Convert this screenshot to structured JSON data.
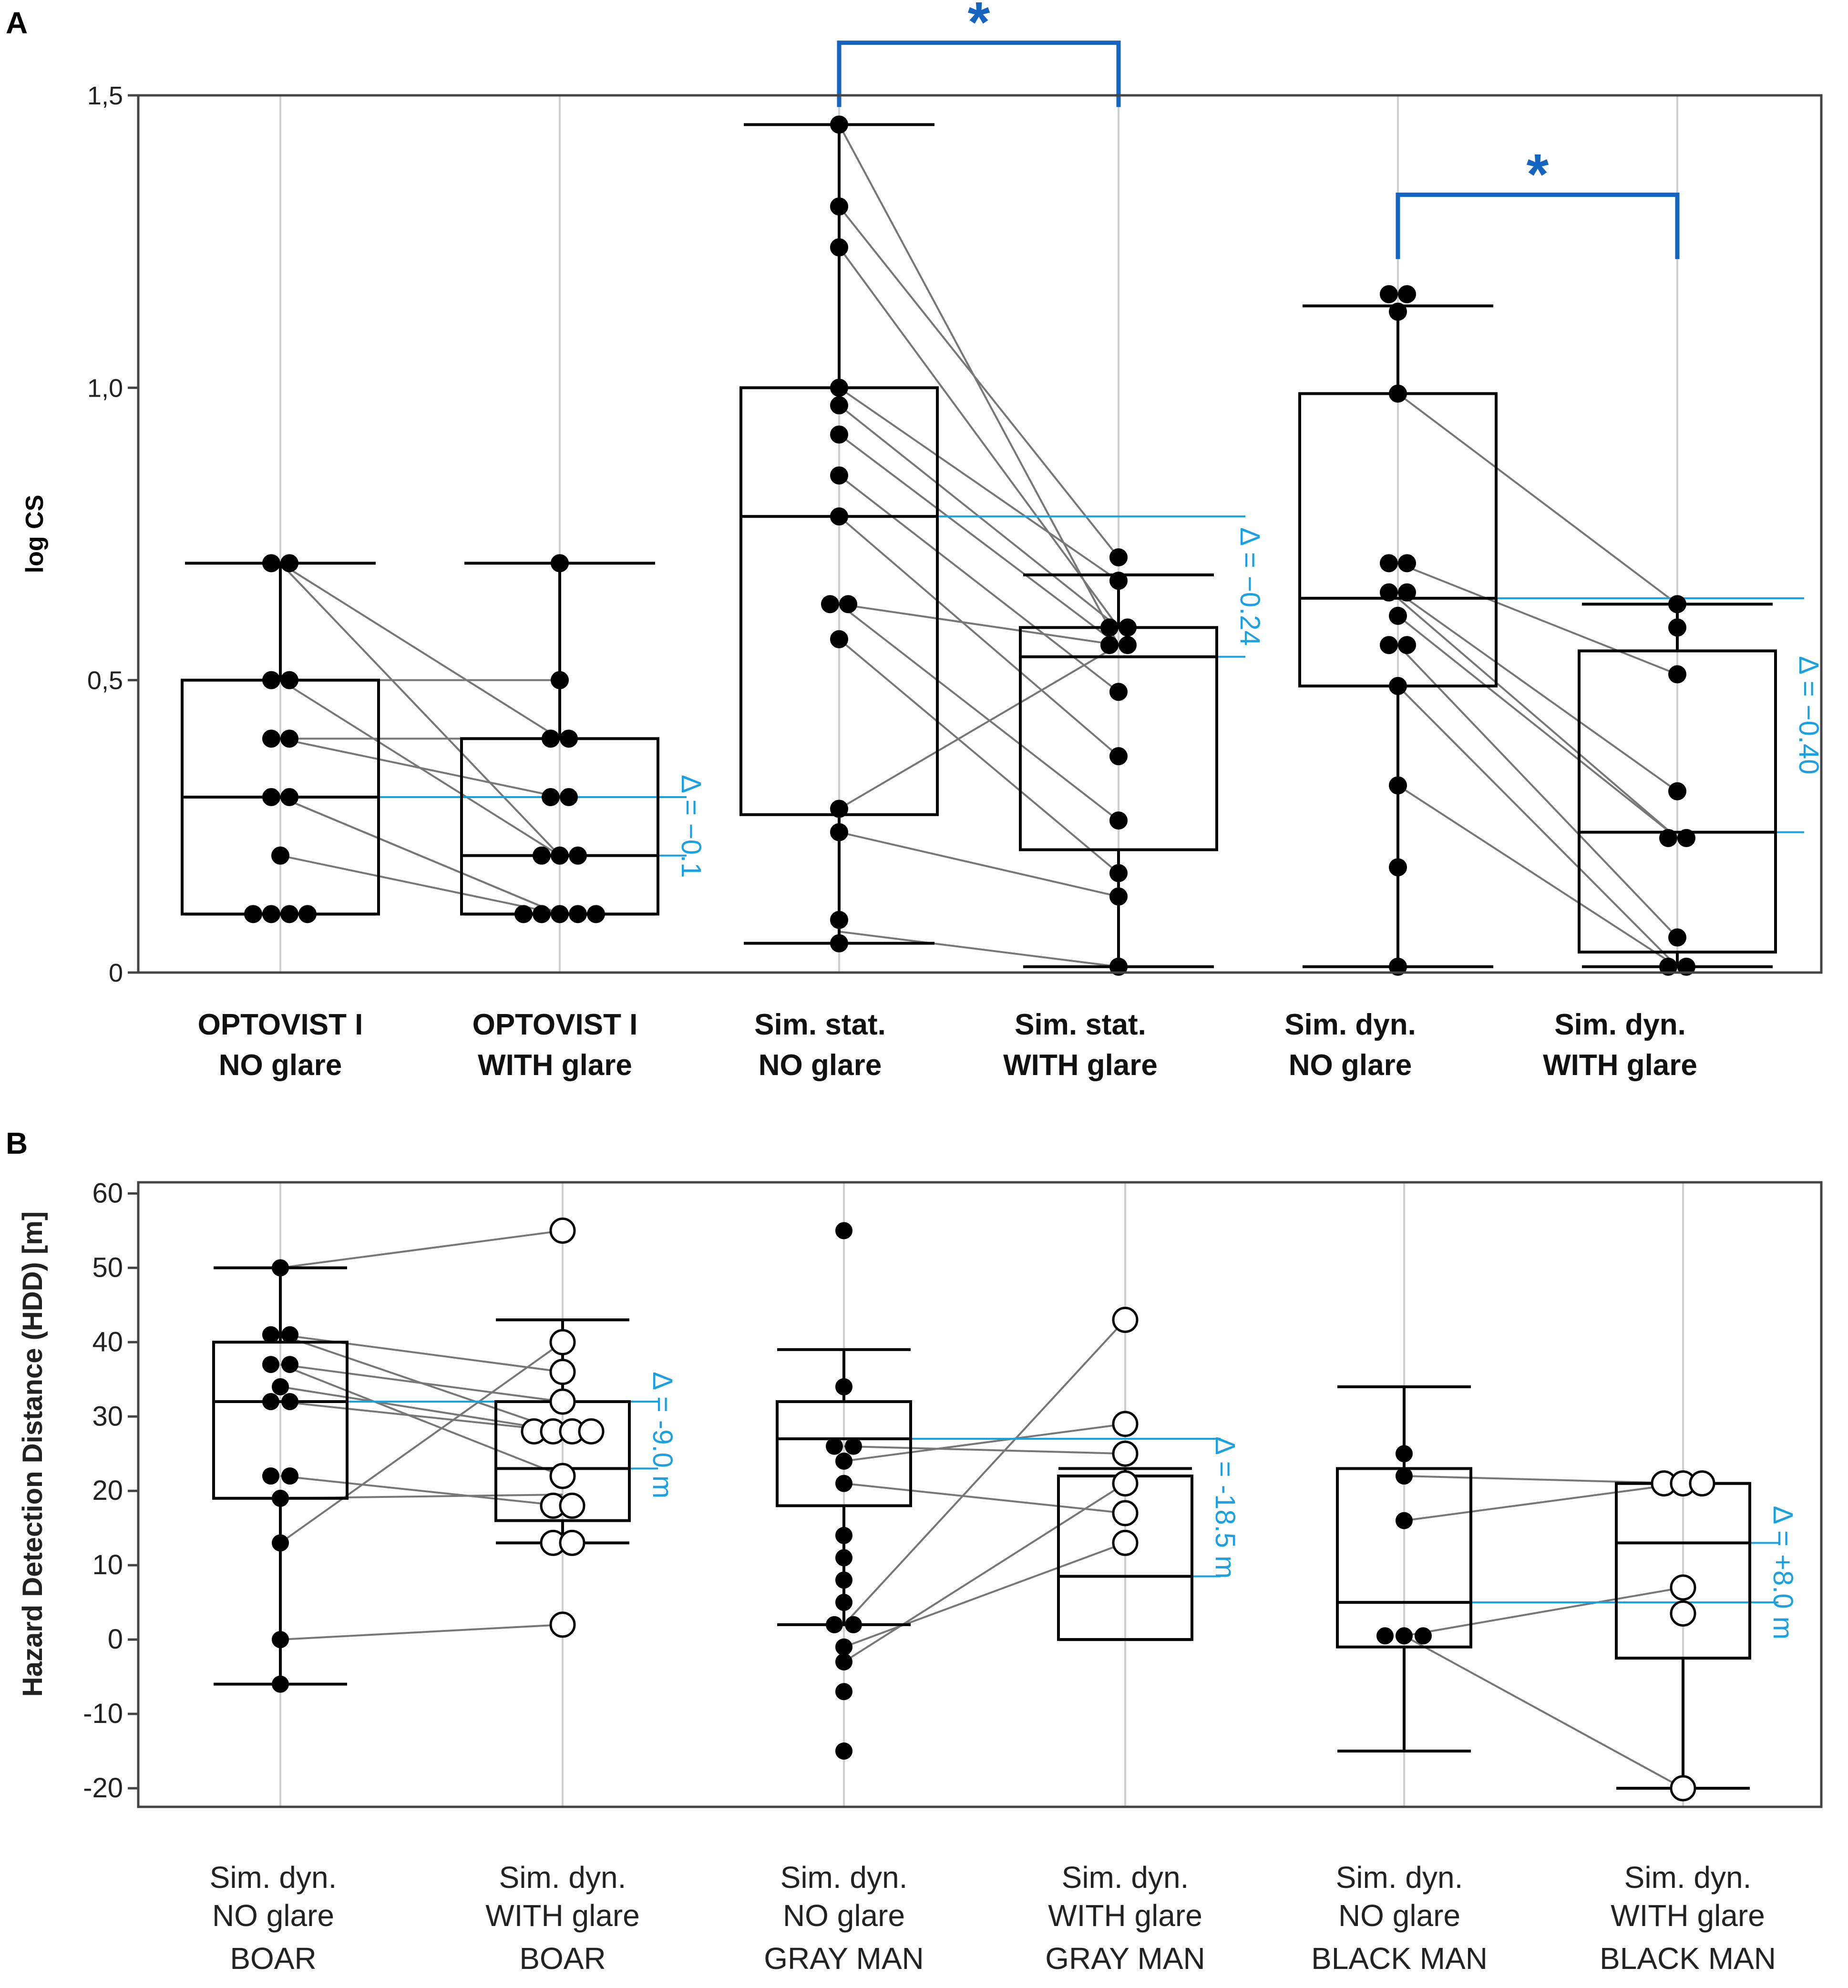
{
  "colors": {
    "delta": "#1ba1e2",
    "significance": "#1565c0",
    "axis": "#444444",
    "grid": "#cfcfcf",
    "box": "#000000",
    "pairLine": "#777777"
  },
  "chart_data": [
    {
      "panel": "A",
      "type": "box",
      "ylabel": "log CS",
      "ylim": [
        0,
        1.5
      ],
      "yticks": [
        0,
        0.5,
        1.0,
        1.5
      ],
      "ytick_labels": [
        "0",
        "0,5",
        "1,0",
        "1,5"
      ],
      "categories": [
        {
          "line1": "OPTOVIST I",
          "line2": "NO glare"
        },
        {
          "line1": "OPTOVIST I",
          "line2": "WITH glare"
        },
        {
          "line1": "Sim. stat.",
          "line2": "NO glare"
        },
        {
          "line1": "Sim. stat.",
          "line2": "WITH glare"
        },
        {
          "line1": "Sim. dyn.",
          "line2": "NO glare"
        },
        {
          "line1": "Sim. dyn.",
          "line2": "WITH glare"
        }
      ],
      "boxes": [
        {
          "q1": 0.1,
          "median": 0.3,
          "q3": 0.5,
          "whisker_low": 0.1,
          "whisker_high": 0.7
        },
        {
          "q1": 0.1,
          "median": 0.2,
          "q3": 0.4,
          "whisker_low": 0.1,
          "whisker_high": 0.7
        },
        {
          "q1": 0.27,
          "median": 0.78,
          "q3": 1.0,
          "whisker_low": 0.05,
          "whisker_high": 1.45
        },
        {
          "q1": 0.21,
          "median": 0.54,
          "q3": 0.59,
          "whisker_low": 0.01,
          "whisker_high": 0.68
        },
        {
          "q1": 0.49,
          "median": 0.64,
          "q3": 0.99,
          "whisker_low": 0.01,
          "whisker_high": 1.14
        },
        {
          "q1": 0.035,
          "median": 0.24,
          "q3": 0.55,
          "whisker_low": 0.01,
          "whisker_high": 0.63
        }
      ],
      "points": [
        [
          0.7,
          0.7,
          0.5,
          0.5,
          0.4,
          0.4,
          0.3,
          0.3,
          0.2,
          0.1,
          0.1,
          0.1,
          0.1
        ],
        [
          0.7,
          0.5,
          0.4,
          0.4,
          0.3,
          0.3,
          0.2,
          0.2,
          0.2,
          0.1,
          0.1,
          0.1,
          0.1,
          0.1
        ],
        [
          1.45,
          1.31,
          1.24,
          1.0,
          0.97,
          0.92,
          0.85,
          0.78,
          0.63,
          0.63,
          0.57,
          0.28,
          0.24,
          0.09,
          0.05
        ],
        [
          0.71,
          0.67,
          0.59,
          0.59,
          0.56,
          0.56,
          0.48,
          0.37,
          0.26,
          0.17,
          0.13,
          0.01
        ],
        [
          1.16,
          1.16,
          1.13,
          0.99,
          0.7,
          0.7,
          0.65,
          0.65,
          0.61,
          0.56,
          0.56,
          0.49,
          0.32,
          0.18,
          0.01
        ],
        [
          0.63,
          0.59,
          0.51,
          0.31,
          0.23,
          0.23,
          0.06,
          0.01,
          0.01
        ]
      ],
      "pair_lines": [
        {
          "from": 0,
          "to": 1,
          "values": [
            [
              0.7,
              0.4
            ],
            [
              0.7,
              0.2
            ],
            [
              0.5,
              0.5
            ],
            [
              0.5,
              0.2
            ],
            [
              0.4,
              0.4
            ],
            [
              0.4,
              0.3
            ],
            [
              0.3,
              0.1
            ],
            [
              0.3,
              0.1
            ],
            [
              0.2,
              0.1
            ]
          ]
        },
        {
          "from": 2,
          "to": 3,
          "values": [
            [
              1.45,
              0.56
            ],
            [
              1.31,
              0.71
            ],
            [
              1.24,
              0.59
            ],
            [
              1.0,
              0.67
            ],
            [
              0.97,
              0.59
            ],
            [
              0.92,
              0.56
            ],
            [
              0.85,
              0.48
            ],
            [
              0.78,
              0.37
            ],
            [
              0.63,
              0.56
            ],
            [
              0.63,
              0.26
            ],
            [
              0.57,
              0.17
            ],
            [
              0.28,
              0.56
            ],
            [
              0.24,
              0.13
            ],
            [
              0.07,
              0.01
            ]
          ]
        },
        {
          "from": 4,
          "to": 5,
          "values": [
            [
              0.99,
              0.63
            ],
            [
              0.7,
              0.51
            ],
            [
              0.65,
              0.31
            ],
            [
              0.64,
              0.23
            ],
            [
              0.61,
              0.23
            ],
            [
              0.56,
              0.06
            ],
            [
              0.49,
              0.01
            ],
            [
              0.32,
              0.01
            ]
          ]
        }
      ],
      "deltas": [
        {
          "label": "Δ = −0.1",
          "between": [
            0,
            1
          ]
        },
        {
          "label": "Δ = −0.24",
          "between": [
            2,
            3
          ]
        },
        {
          "label": "Δ = −0.40",
          "between": [
            4,
            5
          ]
        }
      ],
      "significance": [
        {
          "label": "*",
          "between": [
            2,
            3
          ],
          "bracket_top": 1.59,
          "bracket_end_left": 1.48,
          "bracket_end_right": 1.48
        },
        {
          "label": "*",
          "between": [
            4,
            5
          ],
          "bracket_top": 1.33,
          "bracket_end_left": 1.22,
          "bracket_end_right": 1.22
        }
      ]
    },
    {
      "panel": "B",
      "type": "box",
      "ylabel": "Hazard Detection Distance (HDD) [m]",
      "ylim": [
        -22.5,
        61.5
      ],
      "yticks": [
        -20,
        -10,
        0,
        10,
        20,
        30,
        40,
        50,
        60
      ],
      "ytick_labels": [
        "-20",
        "-10",
        "0",
        "10",
        "20",
        "30",
        "40",
        "50",
        "60"
      ],
      "categories": [
        {
          "line1": "Sim. dyn.",
          "line2": "NO glare",
          "line3": "BOAR"
        },
        {
          "line1": "Sim. dyn.",
          "line2": "WITH glare",
          "line3": "BOAR"
        },
        {
          "line1": "Sim. dyn.",
          "line2": "NO glare",
          "line3": "GRAY MAN"
        },
        {
          "line1": "Sim. dyn.",
          "line2": "WITH glare",
          "line3": "GRAY MAN"
        },
        {
          "line1": "Sim. dyn.",
          "line2": "NO glare",
          "line3": "BLACK MAN"
        },
        {
          "line1": "Sim. dyn.",
          "line2": "WITH glare",
          "line3": "BLACK MAN"
        }
      ],
      "boxes": [
        {
          "q1": 19,
          "median": 32,
          "q3": 40,
          "whisker_low": -6,
          "whisker_high": 50
        },
        {
          "q1": 16,
          "median": 23,
          "q3": 32,
          "whisker_low": 13,
          "whisker_high": 43
        },
        {
          "q1": 18,
          "median": 27,
          "q3": 32,
          "whisker_low": 2,
          "whisker_high": 39
        },
        {
          "q1": 0,
          "median": 8.5,
          "q3": 22,
          "whisker_low": 0,
          "whisker_high": 23
        },
        {
          "q1": -1,
          "median": 5,
          "q3": 23,
          "whisker_low": -15,
          "whisker_high": 34
        },
        {
          "q1": -2.5,
          "median": 13,
          "q3": 21,
          "whisker_low": -20,
          "whisker_high": 21
        }
      ],
      "points": [
        [
          50,
          41,
          41,
          37,
          37,
          34,
          32,
          32,
          22,
          22,
          19,
          13,
          0,
          -6
        ],
        [
          55,
          40,
          36,
          32,
          28,
          28,
          28,
          28,
          22,
          18,
          18,
          13,
          13,
          2
        ],
        [
          55,
          34,
          26,
          26,
          24,
          21,
          14,
          11,
          8,
          5,
          2,
          2,
          -1,
          -3,
          -7,
          -15
        ],
        [
          43,
          29,
          25,
          21,
          17,
          13
        ],
        [
          25,
          22,
          16,
          0.5,
          0.5,
          0.5
        ],
        [
          21,
          21,
          21,
          7,
          3.5,
          -20
        ]
      ],
      "point_style": [
        "filled",
        "open",
        "filled",
        "open",
        "filled",
        "open"
      ],
      "pair_lines": [
        {
          "from": 0,
          "to": 1,
          "values": [
            [
              50,
              55
            ],
            [
              41,
              36
            ],
            [
              41,
              28
            ],
            [
              37,
              22
            ],
            [
              37,
              32
            ],
            [
              34,
              28
            ],
            [
              32,
              28
            ],
            [
              22,
              18
            ],
            [
              19,
              19.5
            ],
            [
              13,
              40
            ],
            [
              0,
              2
            ]
          ]
        },
        {
          "from": 2,
          "to": 3,
          "values": [
            [
              26,
              25
            ],
            [
              24,
              29
            ],
            [
              21,
              17
            ],
            [
              2,
              43
            ],
            [
              -1,
              13
            ],
            [
              -3,
              21
            ]
          ]
        },
        {
          "from": 4,
          "to": 5,
          "values": [
            [
              22,
              21
            ],
            [
              16,
              21
            ],
            [
              0.5,
              7
            ],
            [
              0.5,
              -20
            ]
          ]
        }
      ],
      "deltas": [
        {
          "label": "Δ = -9.0 m",
          "between": [
            0,
            1
          ]
        },
        {
          "label": "Δ = -18.5 m",
          "between": [
            2,
            3
          ]
        },
        {
          "label": "Δ = +8.0 m",
          "between": [
            4,
            5
          ]
        }
      ]
    }
  ]
}
